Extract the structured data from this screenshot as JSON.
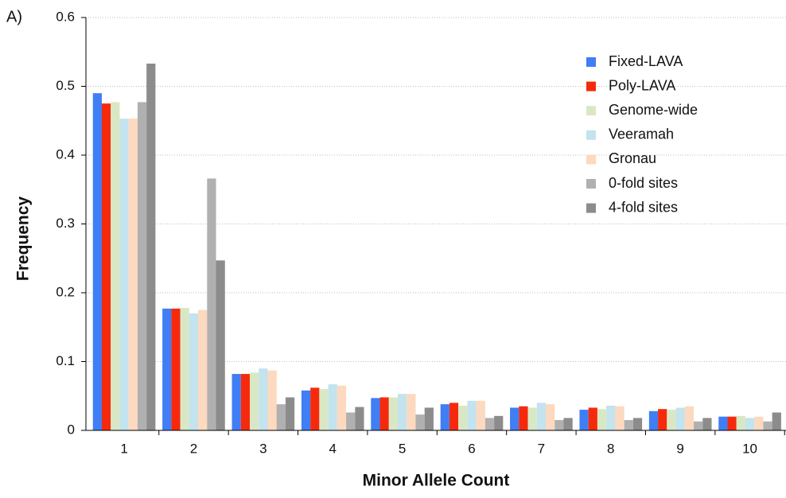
{
  "chart_data": {
    "type": "bar",
    "panel_label": "A)",
    "x_label": "Minor Allele Count",
    "y_label": "Frequency",
    "categories": [
      "1",
      "2",
      "3",
      "4",
      "5",
      "6",
      "7",
      "8",
      "9",
      "10"
    ],
    "series": [
      {
        "name": "Fixed-LAVA",
        "color": "#3f7ef5",
        "values": [
          0.49,
          0.177,
          0.082,
          0.058,
          0.047,
          0.038,
          0.033,
          0.03,
          0.028,
          0.02
        ]
      },
      {
        "name": "Poly-LAVA",
        "color": "#f52a0c",
        "values": [
          0.475,
          0.177,
          0.082,
          0.062,
          0.048,
          0.04,
          0.035,
          0.033,
          0.031,
          0.02
        ]
      },
      {
        "name": "Genome-wide",
        "color": "#d9e8c4",
        "values": [
          0.477,
          0.178,
          0.084,
          0.06,
          0.048,
          0.036,
          0.033,
          0.031,
          0.03,
          0.021
        ]
      },
      {
        "name": "Veeramah",
        "color": "#c3e3ee",
        "values": [
          0.453,
          0.17,
          0.09,
          0.067,
          0.053,
          0.043,
          0.04,
          0.036,
          0.033,
          0.018
        ]
      },
      {
        "name": "Gronau",
        "color": "#fcd9bf",
        "values": [
          0.453,
          0.175,
          0.087,
          0.065,
          0.053,
          0.043,
          0.038,
          0.035,
          0.035,
          0.02
        ]
      },
      {
        "name": "0-fold sites",
        "color": "#b0b0b0",
        "values": [
          0.477,
          0.366,
          0.038,
          0.026,
          0.023,
          0.018,
          0.015,
          0.015,
          0.013,
          0.013
        ]
      },
      {
        "name": "4-fold sites",
        "color": "#8c8c8c",
        "values": [
          0.533,
          0.247,
          0.048,
          0.034,
          0.033,
          0.021,
          0.018,
          0.018,
          0.018,
          0.026
        ]
      }
    ],
    "ylim": [
      0,
      0.6
    ],
    "yticks": [
      0,
      0.1,
      0.2,
      0.3,
      0.4,
      0.5,
      0.6
    ],
    "grid": true,
    "legend_position": "top-right"
  }
}
